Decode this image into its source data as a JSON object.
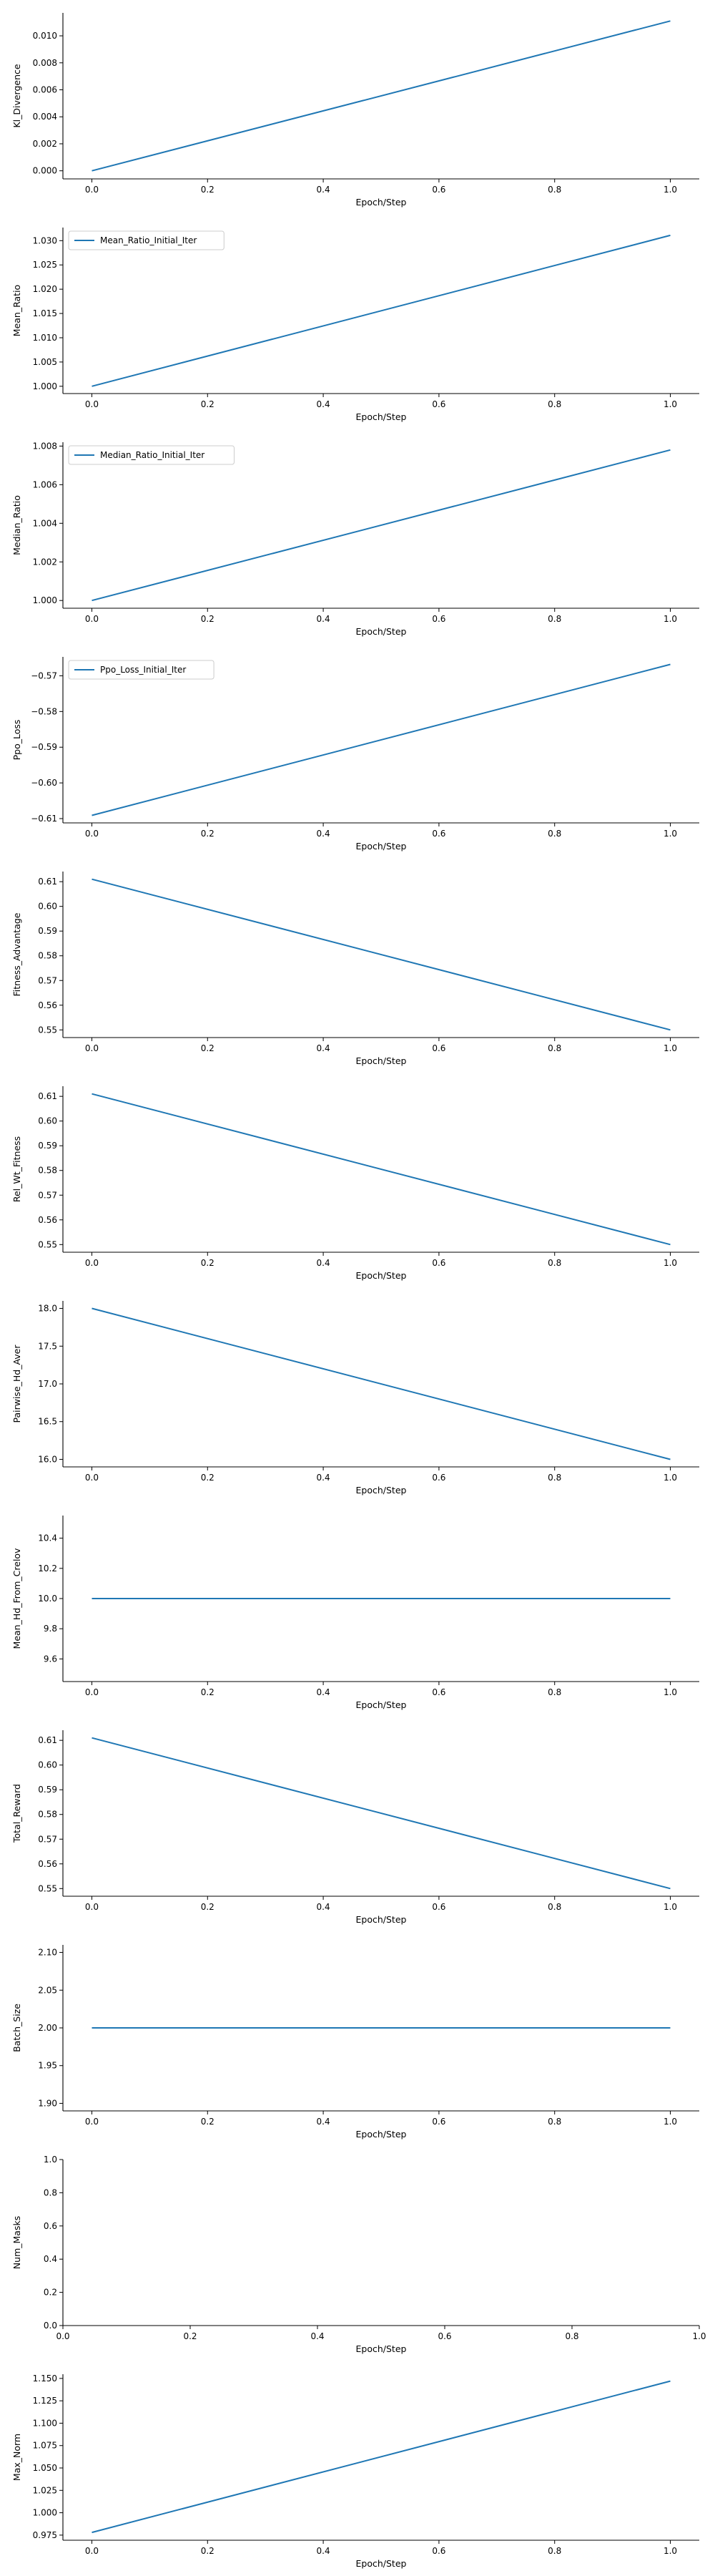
{
  "chart_data": [
    {
      "type": "line",
      "xlabel": "Epoch/Step",
      "ylabel": "Kl_Divergence",
      "xlim": [
        -0.05,
        1.05
      ],
      "ylim": [
        -0.0006,
        0.0117
      ],
      "xticks": [
        "0.0",
        "0.2",
        "0.4",
        "0.6",
        "0.8",
        "1.0"
      ],
      "yticks": [
        "0.000",
        "0.002",
        "0.004",
        "0.006",
        "0.008",
        "0.010"
      ],
      "legend": null,
      "series": [
        {
          "x": [
            0,
            1
          ],
          "values": [
            0.0,
            0.0111
          ],
          "color": "#1f77b4"
        }
      ]
    },
    {
      "type": "line",
      "xlabel": "Epoch/Step",
      "ylabel": "Mean_Ratio",
      "xlim": [
        -0.05,
        1.05
      ],
      "ylim": [
        0.9985,
        1.0327
      ],
      "xticks": [
        "0.0",
        "0.2",
        "0.4",
        "0.6",
        "0.8",
        "1.0"
      ],
      "yticks": [
        "1.000",
        "1.005",
        "1.010",
        "1.015",
        "1.020",
        "1.025",
        "1.030"
      ],
      "legend": "upper left",
      "series": [
        {
          "name": "Mean_Ratio_Initial_Iter",
          "x": [
            0,
            1
          ],
          "values": [
            1.0,
            1.0311
          ],
          "color": "#1f77b4"
        }
      ]
    },
    {
      "type": "line",
      "xlabel": "Epoch/Step",
      "ylabel": "Median_Ratio",
      "xlim": [
        -0.05,
        1.05
      ],
      "ylim": [
        0.9996,
        1.0082
      ],
      "xticks": [
        "0.0",
        "0.2",
        "0.4",
        "0.6",
        "0.8",
        "1.0"
      ],
      "yticks": [
        "1.000",
        "1.002",
        "1.004",
        "1.006",
        "1.008"
      ],
      "legend": "upper left",
      "series": [
        {
          "name": "Median_Ratio_Initial_Iter",
          "x": [
            0,
            1
          ],
          "values": [
            1.0,
            1.0078
          ],
          "color": "#1f77b4"
        }
      ]
    },
    {
      "type": "line",
      "xlabel": "Epoch/Step",
      "ylabel": "Ppo_Loss",
      "xlim": [
        -0.05,
        1.05
      ],
      "ylim": [
        -0.6112,
        -0.5647
      ],
      "xticks": [
        "0.0",
        "0.2",
        "0.4",
        "0.6",
        "0.8",
        "1.0"
      ],
      "yticks": [
        "−0.61",
        "−0.60",
        "−0.59",
        "−0.58",
        "−0.57"
      ],
      "ytick_values": [
        -0.61,
        -0.6,
        -0.59,
        -0.58,
        -0.57
      ],
      "legend": "upper left",
      "series": [
        {
          "name": "Ppo_Loss_Initial_Iter",
          "x": [
            0,
            1
          ],
          "values": [
            -0.6091,
            -0.5668
          ],
          "color": "#1f77b4"
        }
      ]
    },
    {
      "type": "line",
      "xlabel": "Epoch/Step",
      "ylabel": "Fitness_Advantage",
      "xlim": [
        -0.05,
        1.05
      ],
      "ylim": [
        0.5469,
        0.6141
      ],
      "xticks": [
        "0.0",
        "0.2",
        "0.4",
        "0.6",
        "0.8",
        "1.0"
      ],
      "yticks": [
        "0.55",
        "0.56",
        "0.57",
        "0.58",
        "0.59",
        "0.60",
        "0.61"
      ],
      "legend": null,
      "series": [
        {
          "x": [
            0,
            1
          ],
          "values": [
            0.611,
            0.55
          ],
          "color": "#1f77b4"
        }
      ]
    },
    {
      "type": "line",
      "xlabel": "Epoch/Step",
      "ylabel": "Rel_Wt_Fitness",
      "xlim": [
        -0.05,
        1.05
      ],
      "ylim": [
        0.5469,
        0.6141
      ],
      "xticks": [
        "0.0",
        "0.2",
        "0.4",
        "0.6",
        "0.8",
        "1.0"
      ],
      "yticks": [
        "0.55",
        "0.56",
        "0.57",
        "0.58",
        "0.59",
        "0.60",
        "0.61"
      ],
      "legend": null,
      "series": [
        {
          "x": [
            0,
            1
          ],
          "values": [
            0.611,
            0.55
          ],
          "color": "#1f77b4"
        }
      ]
    },
    {
      "type": "line",
      "xlabel": "Epoch/Step",
      "ylabel": "Pairwise_Hd_Aver",
      "xlim": [
        -0.05,
        1.05
      ],
      "ylim": [
        15.9,
        18.1
      ],
      "xticks": [
        "0.0",
        "0.2",
        "0.4",
        "0.6",
        "0.8",
        "1.0"
      ],
      "yticks": [
        "16.0",
        "16.5",
        "17.0",
        "17.5",
        "18.0"
      ],
      "legend": null,
      "series": [
        {
          "x": [
            0,
            1
          ],
          "values": [
            18.0,
            16.0
          ],
          "color": "#1f77b4"
        }
      ]
    },
    {
      "type": "line",
      "xlabel": "Epoch/Step",
      "ylabel": "Mean_Hd_From_Crelov",
      "xlim": [
        -0.05,
        1.05
      ],
      "ylim": [
        9.45,
        10.55
      ],
      "xticks": [
        "0.0",
        "0.2",
        "0.4",
        "0.6",
        "0.8",
        "1.0"
      ],
      "yticks": [
        "9.6",
        "9.8",
        "10.0",
        "10.2",
        "10.4"
      ],
      "legend": null,
      "series": [
        {
          "x": [
            0,
            1
          ],
          "values": [
            10.0,
            10.0
          ],
          "color": "#1f77b4"
        }
      ]
    },
    {
      "type": "line",
      "xlabel": "Epoch/Step",
      "ylabel": "Total_Reward",
      "xlim": [
        -0.05,
        1.05
      ],
      "ylim": [
        0.5469,
        0.6141
      ],
      "xticks": [
        "0.0",
        "0.2",
        "0.4",
        "0.6",
        "0.8",
        "1.0"
      ],
      "yticks": [
        "0.55",
        "0.56",
        "0.57",
        "0.58",
        "0.59",
        "0.60",
        "0.61"
      ],
      "legend": null,
      "series": [
        {
          "x": [
            0,
            1
          ],
          "values": [
            0.611,
            0.55
          ],
          "color": "#1f77b4"
        }
      ]
    },
    {
      "type": "line",
      "xlabel": "Epoch/Step",
      "ylabel": "Batch_Size",
      "xlim": [
        -0.05,
        1.05
      ],
      "ylim": [
        1.89,
        2.11
      ],
      "xticks": [
        "0.0",
        "0.2",
        "0.4",
        "0.6",
        "0.8",
        "1.0"
      ],
      "yticks": [
        "1.90",
        "1.95",
        "2.00",
        "2.05",
        "2.10"
      ],
      "legend": null,
      "series": [
        {
          "x": [
            0,
            1
          ],
          "values": [
            2.0,
            2.0
          ],
          "color": "#1f77b4"
        }
      ]
    },
    {
      "type": "line",
      "xlabel": "Epoch/Step",
      "ylabel": "Num_Masks",
      "xlim": [
        0,
        1
      ],
      "ylim": [
        0,
        1
      ],
      "xticks": [
        "0.0",
        "0.2",
        "0.4",
        "0.6",
        "0.8",
        "1.0"
      ],
      "yticks": [
        "0.0",
        "0.2",
        "0.4",
        "0.6",
        "0.8",
        "1.0"
      ],
      "legend": null,
      "series": []
    },
    {
      "type": "line",
      "xlabel": "Epoch/Step",
      "ylabel": "Max_Norm",
      "xlim": [
        -0.05,
        1.05
      ],
      "ylim": [
        0.9693,
        1.1547
      ],
      "xticks": [
        "0.0",
        "0.2",
        "0.4",
        "0.6",
        "0.8",
        "1.0"
      ],
      "yticks": [
        "0.975",
        "1.000",
        "1.025",
        "1.050",
        "1.075",
        "1.100",
        "1.125",
        "1.150"
      ],
      "legend": null,
      "series": [
        {
          "x": [
            0,
            1
          ],
          "values": [
            0.978,
            1.147
          ],
          "color": "#1f77b4"
        }
      ]
    }
  ]
}
